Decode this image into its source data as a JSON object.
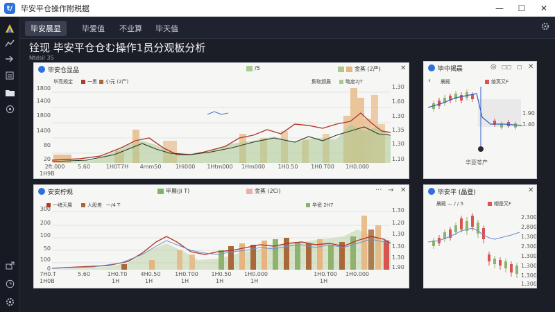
{
  "window": {
    "title": "毕安平仓操作附税据",
    "minimize": "—",
    "maximize": "☐",
    "close": "✕",
    "logo_text": "t/"
  },
  "rail": {
    "icons": [
      "logo-icon",
      "trend-icon",
      "export-icon",
      "list-icon",
      "folder-icon",
      "network-icon",
      "share-icon",
      "clock-icon",
      "settings-icon"
    ]
  },
  "tabs": [
    {
      "label": "毕安晨显",
      "active": true
    },
    {
      "label": "毕爱值",
      "active": false
    },
    {
      "label": "不业算",
      "active": false
    },
    {
      "label": "毕天值",
      "active": false
    }
  ],
  "page": {
    "title": "铨现 毕安平仓仓む操作1员分观板分析",
    "subtitle": "Ntdsil 35"
  },
  "panel1": {
    "title": "毕安仓显品",
    "legend": [
      {
        "label": "/5",
        "color": "#a9c98f"
      },
      {
        "label": "金蒸 (2严)",
        "color": "#e6b47c"
      }
    ],
    "series_labels": [
      "毕亮规定",
      "一黑",
      "小元 (2尸)"
    ],
    "right_series_labels": [
      "集取颁展",
      "略度2JT"
    ],
    "y_left": [
      "1800",
      "1400",
      "1800",
      "1400",
      "80",
      "20"
    ],
    "y_right": [
      "1.30",
      "1.60",
      "1.30",
      "1.35",
      "1.30",
      "1.10"
    ],
    "x_labels": [
      "2ft.000",
      "5.60",
      "1H0T7H",
      "4mm50",
      "1Hi000",
      "1Htm000",
      "1Hm000",
      "1H0.50",
      "1H0.T00",
      "1H0.000"
    ],
    "x_sub_left": "1H9B",
    "controls": [
      "✕"
    ],
    "colors": {
      "bar_green": "#a9c98f",
      "bar_tan": "#e6b47c",
      "line_red": "#b23a2a",
      "line_dark": "#2a3a2a",
      "line_blue": "#4a78c8"
    }
  },
  "panel2": {
    "title": "安安柠规",
    "legend": [
      {
        "label": "毕展(Ji T)",
        "color": "#7fb36a"
      },
      {
        "label": "金蒸 (2Ci)",
        "color": "#e9b0a8"
      }
    ],
    "series_labels": [
      "一绪天展",
      "人股差",
      "一/4 T"
    ],
    "right_series_labels": [
      "毕瓷 2H7"
    ],
    "y_left": [
      "300",
      "200",
      "100",
      "50",
      "100",
      "0"
    ],
    "y_right": [
      "1.30",
      "1.20",
      "1.30",
      "1.30",
      "1.30",
      "1.90"
    ],
    "x_labels": [
      "7H0.T",
      "5.60",
      "1H0.T0",
      "4H0.50",
      "1H0.T00",
      "1H0.50",
      "1H0.000",
      "1H0.T00",
      "1H0.000"
    ],
    "x_sub": [
      "1H0B",
      "1H",
      "1H",
      "1H",
      "1H",
      "1H",
      "1H"
    ],
    "controls": [
      "···",
      "→",
      "✕"
    ],
    "colors": {
      "bar_green": "#8fb36f",
      "bar_brown": "#a8683a",
      "bar_tan": "#e6b47c",
      "bar_red": "#d9534f",
      "line_red": "#b23a2a",
      "line_blue": "#6c8fd0"
    }
  },
  "panel3": {
    "title": "毕中揭晨",
    "legend": [
      {
        "label": "晨殿",
        "color": "#6c8fd0"
      },
      {
        "label": "绫蒸又F",
        "color": "#d9534f"
      }
    ],
    "y_right": [
      "1.90",
      "1.40"
    ],
    "footer": "华亚苓产",
    "controls": [
      "◎",
      "☐☐",
      "☐",
      "✕"
    ],
    "nav": "‹"
  },
  "panel4": {
    "title": "毕安平 (晶登)",
    "legend": [
      {
        "label": "晨殿 — / / 5",
        "color": "#6c8fd0"
      },
      {
        "label": "帽是又F",
        "color": "#d9534f"
      }
    ],
    "y_right": [
      "2.300",
      "2.800",
      "1.300",
      "2.300",
      "1.300",
      "1.300",
      "1.300",
      "1.300"
    ],
    "controls": [
      "✕"
    ]
  }
}
